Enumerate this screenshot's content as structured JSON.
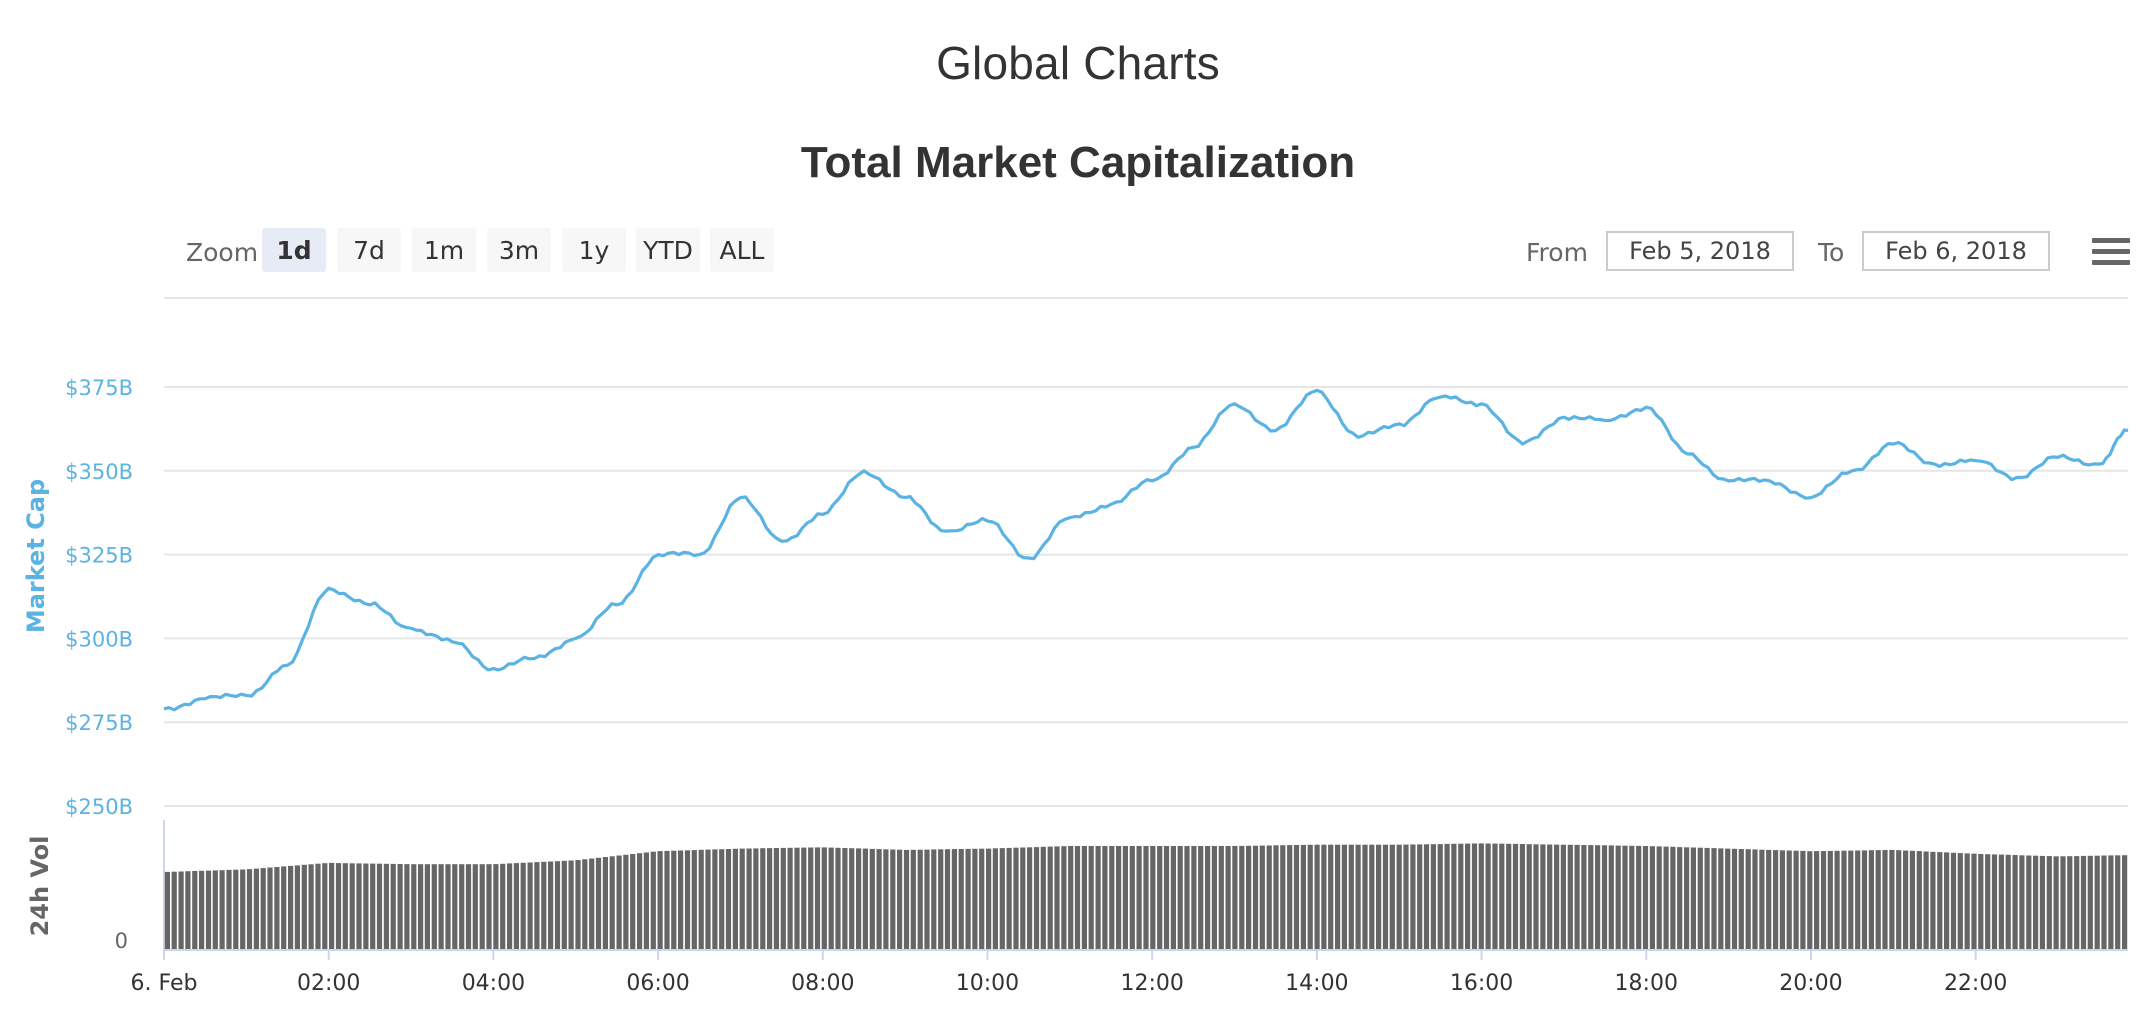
{
  "header": {
    "page_title": "Global Charts"
  },
  "toolbar": {
    "zoom_label": "Zoom",
    "zoom_buttons": [
      "1d",
      "7d",
      "1m",
      "3m",
      "1y",
      "YTD",
      "ALL"
    ],
    "active_zoom": "1d",
    "from_label": "From",
    "from_value": "Feb 5, 2018",
    "to_label": "To",
    "to_value": "Feb 6, 2018",
    "menu_icon": "hamburger-menu-icon"
  },
  "colors": {
    "line": "#5bb3e3",
    "volume": "#666666",
    "grid": "#e6e6e6",
    "axis_text": "#5bb3e3"
  },
  "chart_data": {
    "type": "line",
    "title": "Total Market Capitalization",
    "ylabel": "Market Cap",
    "y_ticks": [
      "$250B",
      "$275B",
      "$300B",
      "$325B",
      "$350B",
      "$375B"
    ],
    "ylim": [
      250,
      375
    ],
    "x_ticks": [
      "6. Feb",
      "02:00",
      "04:00",
      "06:00",
      "08:00",
      "10:00",
      "12:00",
      "14:00",
      "16:00",
      "18:00",
      "20:00",
      "22:00"
    ],
    "xlim_hours": [
      0,
      23.85
    ],
    "series": [
      {
        "name": "Market Cap",
        "x": [
          0,
          0.5,
          1,
          1.5,
          2,
          2.5,
          3,
          3.5,
          4,
          4.5,
          5,
          5.5,
          6,
          6.5,
          7,
          7.5,
          8,
          8.5,
          9,
          9.5,
          10,
          10.5,
          11,
          11.5,
          12,
          12.5,
          13,
          13.5,
          14,
          14.5,
          15,
          15.5,
          16,
          16.5,
          17,
          17.5,
          18,
          18.5,
          19,
          19.5,
          20,
          20.5,
          21,
          21.5,
          22,
          22.5,
          23,
          23.5,
          23.85
        ],
        "values": [
          279,
          282,
          283,
          292,
          315,
          310,
          303,
          299,
          291,
          294,
          300,
          310,
          325,
          325,
          342,
          329,
          337,
          350,
          342,
          332,
          335,
          324,
          336,
          340,
          347,
          357,
          370,
          362,
          374,
          360,
          364,
          372,
          370,
          358,
          366,
          365,
          369,
          355,
          347,
          347,
          342,
          350,
          358,
          352,
          353,
          348,
          354,
          352,
          362
        ]
      }
    ],
    "volume": {
      "ylabel": "24h Vol",
      "y_ticks": [
        "0"
      ],
      "x": [
        0,
        1,
        2,
        3,
        4,
        5,
        6,
        7,
        8,
        9,
        10,
        11,
        12,
        13,
        14,
        15,
        16,
        17,
        18,
        19,
        20,
        21,
        22,
        23,
        23.85
      ],
      "values": [
        60,
        62,
        67,
        66,
        66,
        69,
        76,
        78,
        79,
        77,
        78,
        80,
        80,
        80,
        81,
        81,
        82,
        81,
        80,
        78,
        76,
        77,
        74,
        72,
        73
      ],
      "vmax": 100
    }
  }
}
